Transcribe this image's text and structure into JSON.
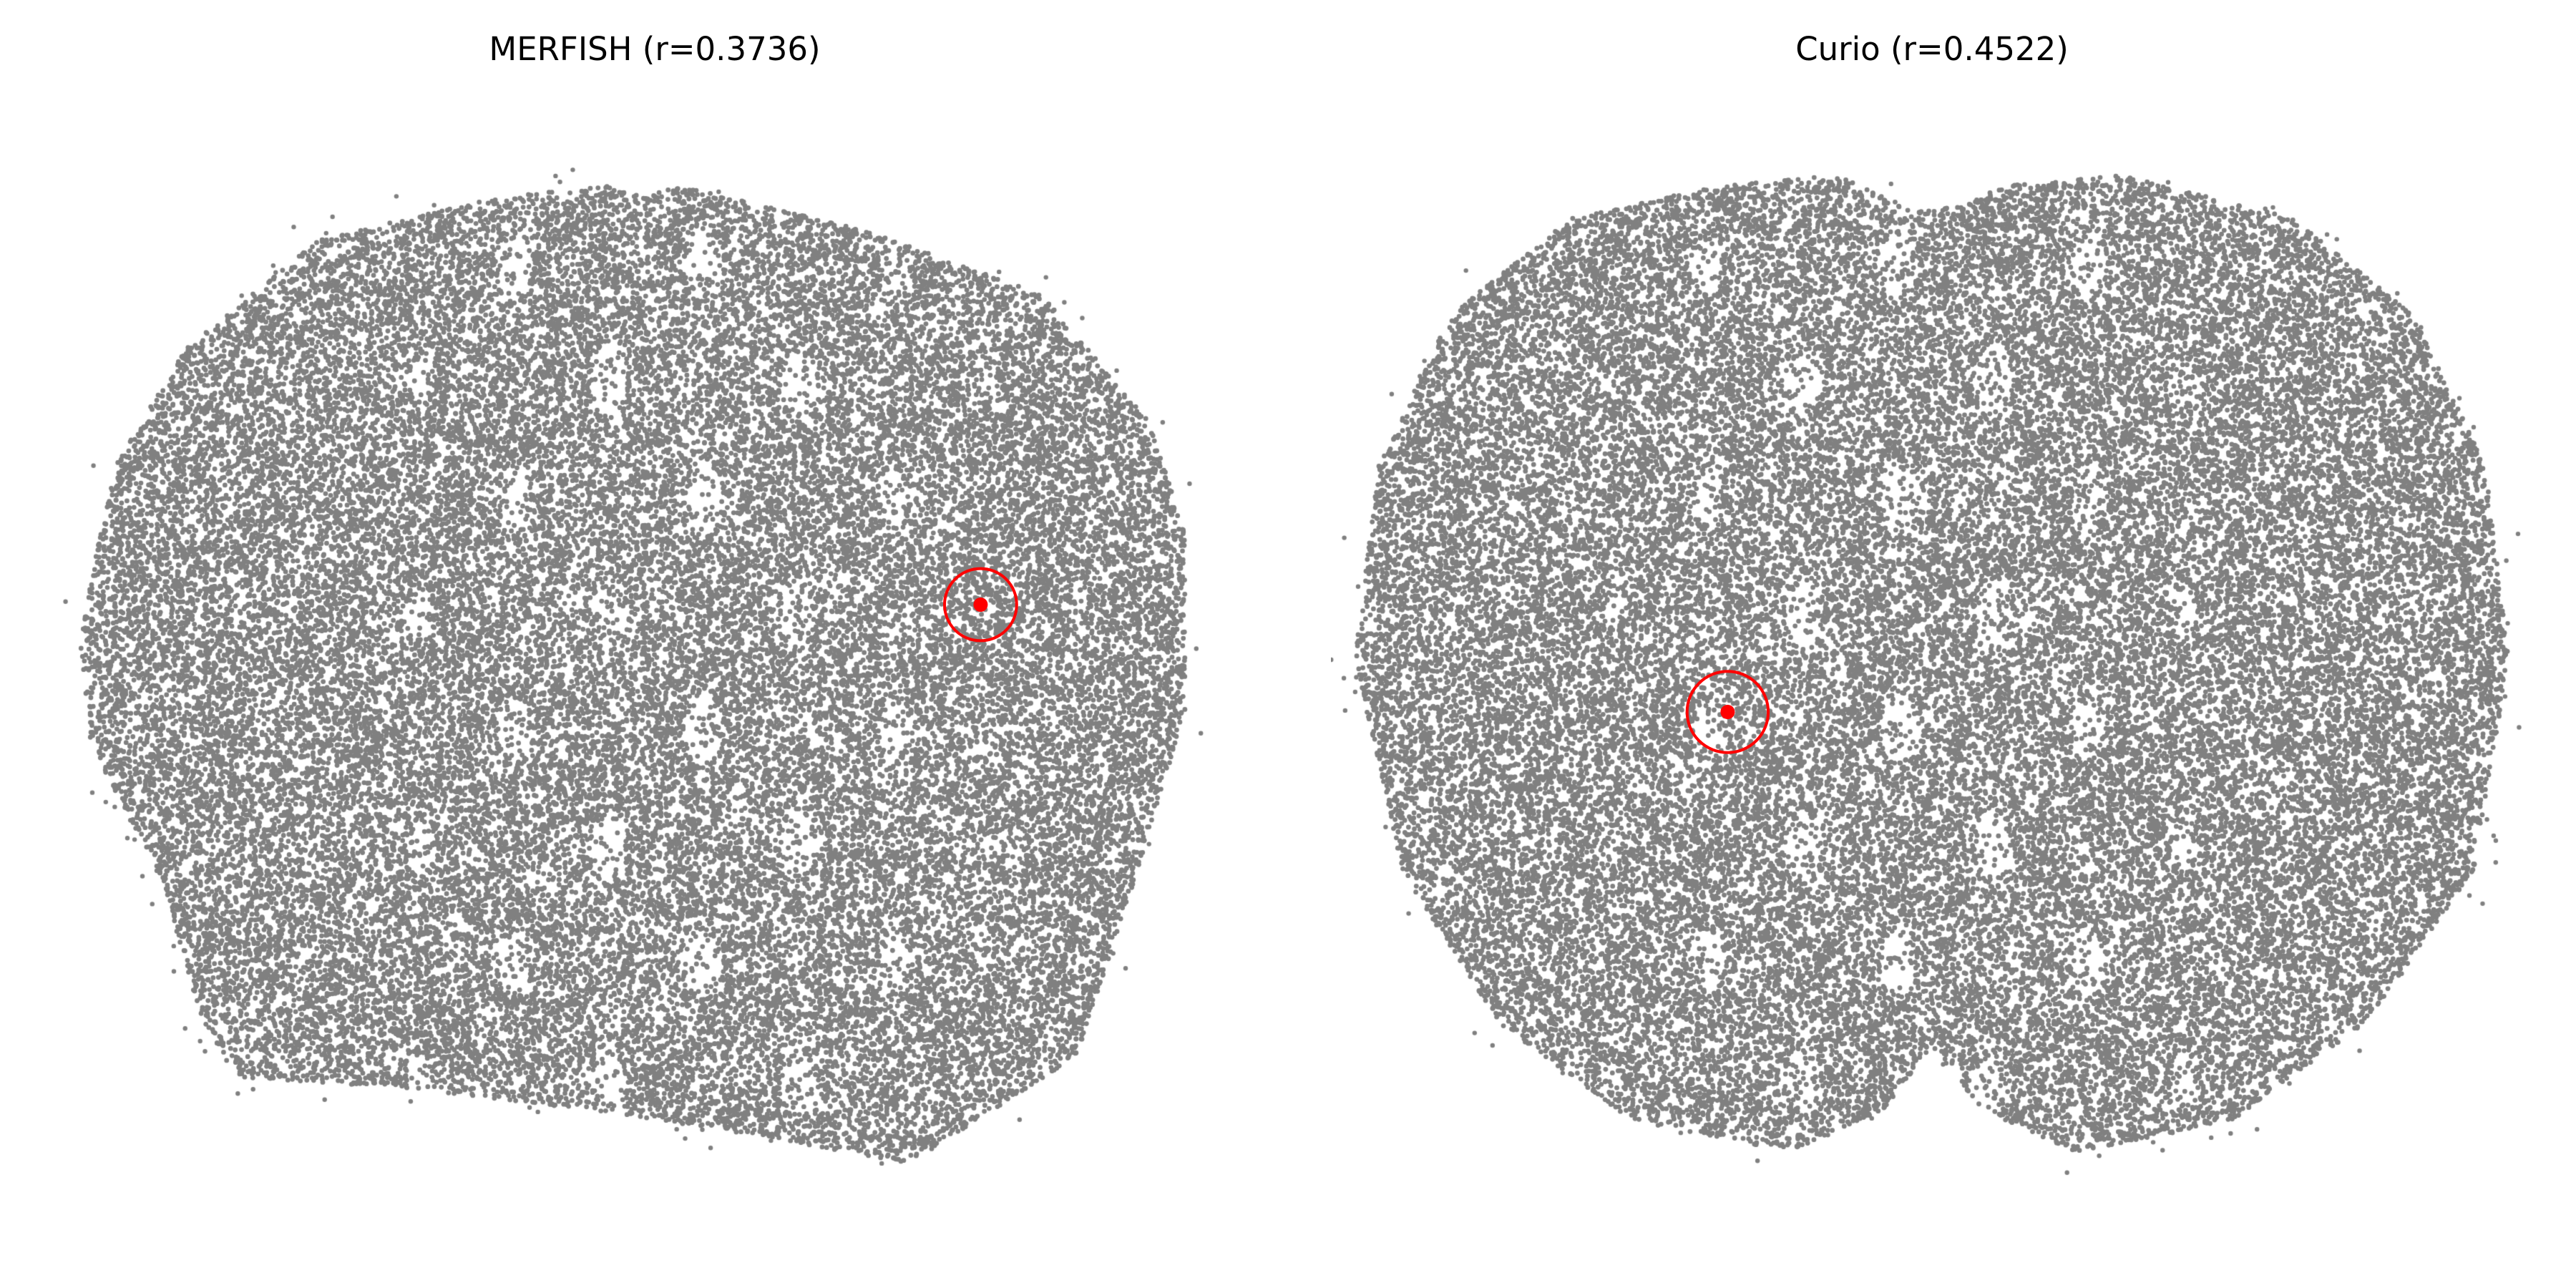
{
  "colors": {
    "points": "#808080",
    "highlight": "#ff0000",
    "background": "#ffffff"
  },
  "chart_data": [
    {
      "type": "scatter",
      "title": "MERFISH (r=0.3736)",
      "axes_visible": false,
      "grid": false,
      "legend": "none",
      "point_color": "#808080",
      "xlim": [
        0,
        1
      ],
      "ylim": [
        0,
        1
      ],
      "tissue_outline": [
        [
          0.03,
          0.52
        ],
        [
          0.06,
          0.68
        ],
        [
          0.12,
          0.79
        ],
        [
          0.23,
          0.89
        ],
        [
          0.38,
          0.93
        ],
        [
          0.47,
          0.94
        ],
        [
          0.5,
          0.93
        ],
        [
          0.53,
          0.94
        ],
        [
          0.68,
          0.9
        ],
        [
          0.83,
          0.84
        ],
        [
          0.92,
          0.72
        ],
        [
          0.95,
          0.62
        ],
        [
          0.95,
          0.45
        ],
        [
          0.91,
          0.3
        ],
        [
          0.86,
          0.13
        ],
        [
          0.75,
          0.05
        ],
        [
          0.72,
          0.03
        ],
        [
          0.57,
          0.06
        ],
        [
          0.45,
          0.08
        ],
        [
          0.3,
          0.1
        ],
        [
          0.16,
          0.11
        ],
        [
          0.13,
          0.17
        ],
        [
          0.1,
          0.29
        ],
        [
          0.04,
          0.42
        ]
      ],
      "highlight": {
        "point": [
          0.78,
          0.55
        ],
        "circle_radius": 0.04
      }
    },
    {
      "type": "scatter",
      "title": "Curio (r=0.4522)",
      "axes_visible": false,
      "grid": false,
      "legend": "none",
      "point_color": "#808080",
      "xlim": [
        0,
        1
      ],
      "ylim": [
        0,
        1
      ],
      "tissue_outline": [
        [
          0.02,
          0.5
        ],
        [
          0.04,
          0.68
        ],
        [
          0.1,
          0.82
        ],
        [
          0.2,
          0.91
        ],
        [
          0.32,
          0.94
        ],
        [
          0.42,
          0.95
        ],
        [
          0.48,
          0.92
        ],
        [
          0.52,
          0.92
        ],
        [
          0.56,
          0.94
        ],
        [
          0.66,
          0.95
        ],
        [
          0.8,
          0.91
        ],
        [
          0.9,
          0.82
        ],
        [
          0.96,
          0.68
        ],
        [
          0.98,
          0.5
        ],
        [
          0.95,
          0.3
        ],
        [
          0.86,
          0.16
        ],
        [
          0.75,
          0.07
        ],
        [
          0.62,
          0.04
        ],
        [
          0.54,
          0.08
        ],
        [
          0.5,
          0.14
        ],
        [
          0.46,
          0.08
        ],
        [
          0.38,
          0.04
        ],
        [
          0.25,
          0.07
        ],
        [
          0.14,
          0.16
        ],
        [
          0.06,
          0.3
        ]
      ],
      "highlight": {
        "point": [
          0.33,
          0.45
        ],
        "circle_radius": 0.045
      }
    }
  ]
}
